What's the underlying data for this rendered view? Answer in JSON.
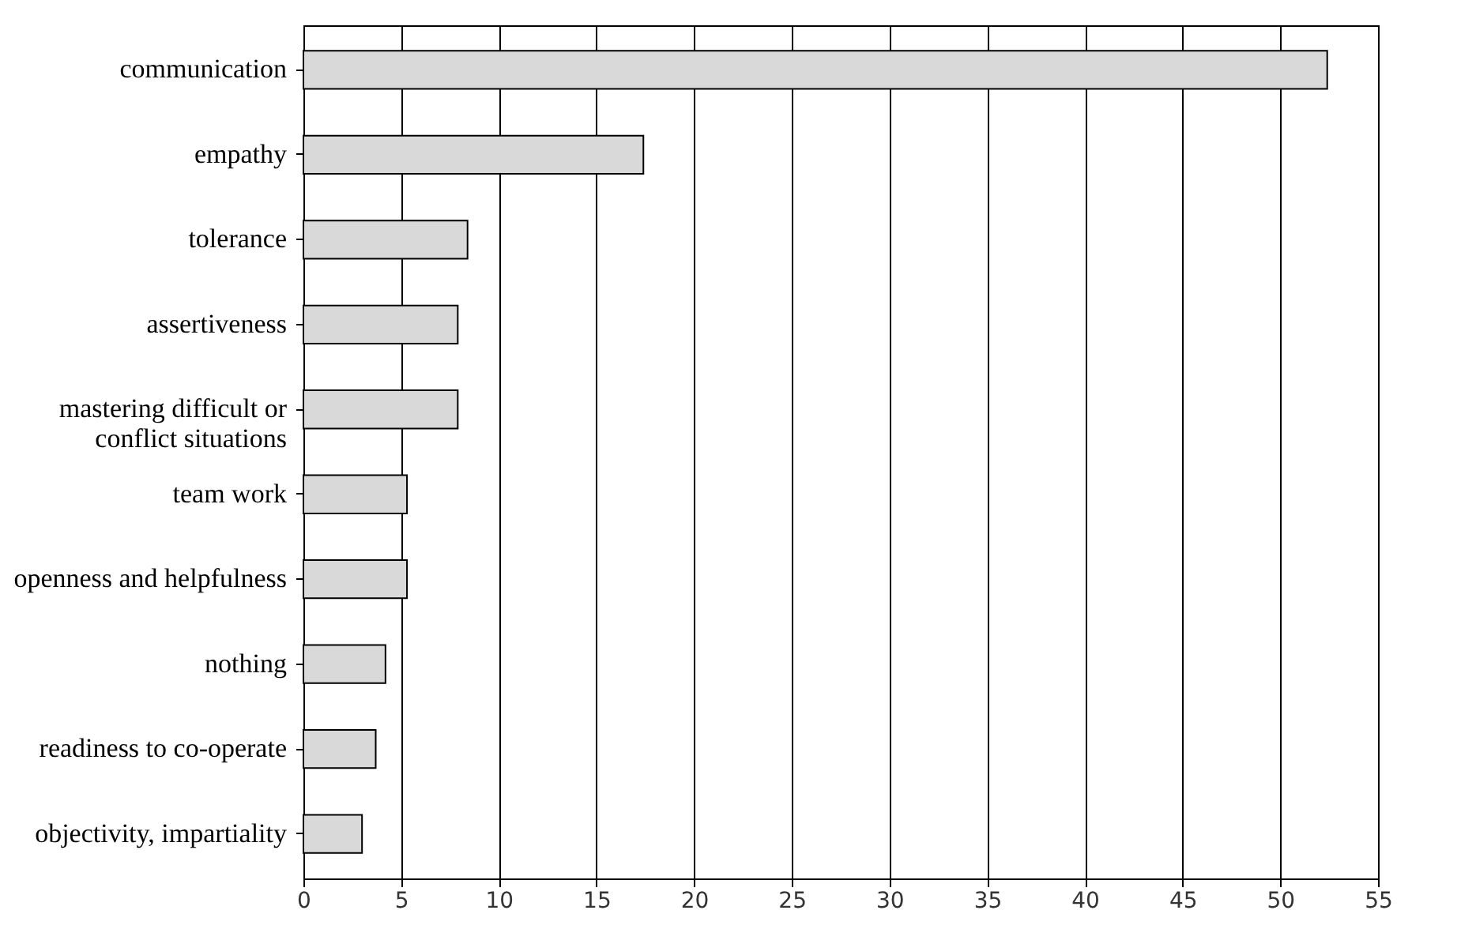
{
  "chart_data": {
    "type": "bar",
    "orientation": "horizontal",
    "categories": [
      "communication",
      "empathy",
      "tolerance",
      "assertiveness",
      "mastering difficult or conflict situations",
      "team work",
      "openness and helpfulness",
      "nothing",
      "readiness to co-operate",
      "objectivity, impartiality"
    ],
    "values": [
      52.4,
      17.4,
      8.4,
      7.9,
      7.9,
      5.3,
      5.3,
      4.2,
      3.7,
      3.0
    ],
    "color": "#d9d9d9",
    "xlim": [
      0,
      55
    ],
    "xticks": [
      0,
      5,
      10,
      15,
      20,
      25,
      30,
      35,
      40,
      45,
      50,
      55
    ],
    "grid": "x"
  }
}
